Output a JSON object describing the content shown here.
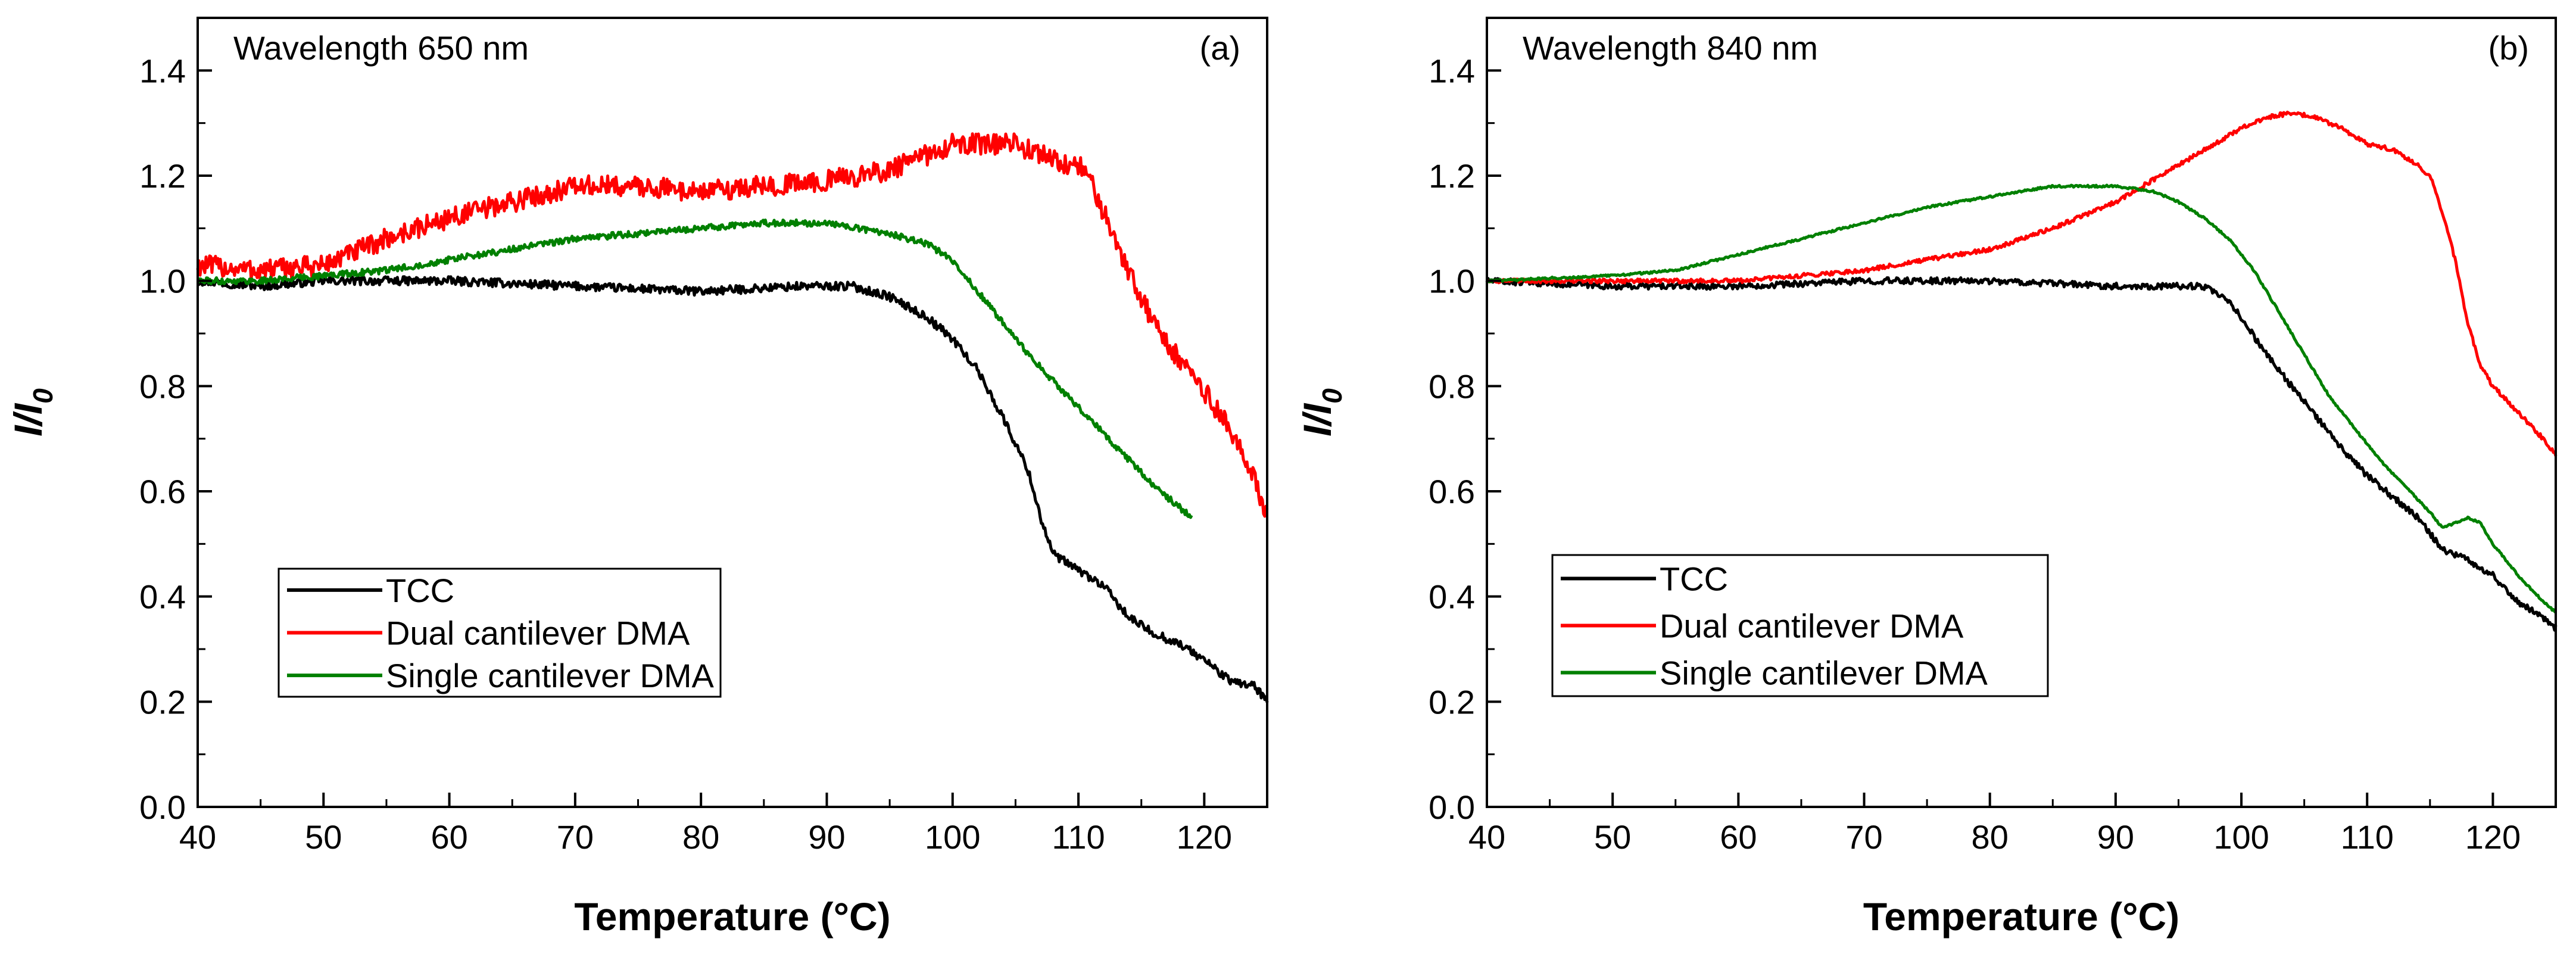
{
  "chart_data": [
    {
      "type": "line",
      "panel_label": "(a)",
      "title": "Wavelength 650 nm",
      "xlabel": "Temperature (°C)",
      "ylabel": "I/I0",
      "ylabel_main": "I/I",
      "ylabel_sub": "0",
      "xlim": [
        40,
        125
      ],
      "ylim": [
        0,
        1.5
      ],
      "xticks": [
        40,
        50,
        60,
        70,
        80,
        90,
        100,
        110,
        120
      ],
      "yticks": [
        "0.0",
        "0.2",
        "0.4",
        "0.6",
        "0.8",
        "1.0",
        "1.2",
        "1.4"
      ],
      "legend": {
        "placement": "bottom-left",
        "entries": [
          "TCC",
          "Dual cantilever DMA",
          "Single cantilever DMA"
        ]
      },
      "series": [
        {
          "name": "TCC",
          "color": "#000000",
          "noise": 0.008,
          "x": [
            40,
            45,
            50,
            60,
            70,
            80,
            88,
            92,
            95,
            98,
            100,
            102,
            104,
            106,
            107,
            108,
            110,
            112,
            114,
            116,
            118,
            120,
            122,
            124,
            125
          ],
          "y": [
            1.0,
            0.99,
            1.0,
            1.0,
            0.99,
            0.98,
            0.99,
            0.99,
            0.97,
            0.93,
            0.89,
            0.83,
            0.74,
            0.64,
            0.55,
            0.48,
            0.45,
            0.42,
            0.36,
            0.33,
            0.31,
            0.28,
            0.24,
            0.23,
            0.2
          ]
        },
        {
          "name": "Dual cantilever DMA",
          "color": "#ff0000",
          "noise": 0.02,
          "x": [
            40,
            45,
            50,
            55,
            60,
            65,
            70,
            75,
            80,
            85,
            90,
            95,
            100,
            103,
            105,
            107,
            109,
            110,
            111,
            112,
            114,
            116,
            118,
            120,
            122,
            124,
            125
          ],
          "y": [
            1.03,
            1.02,
            1.03,
            1.08,
            1.12,
            1.15,
            1.18,
            1.18,
            1.17,
            1.18,
            1.19,
            1.21,
            1.26,
            1.26,
            1.26,
            1.24,
            1.22,
            1.22,
            1.19,
            1.13,
            1.02,
            0.92,
            0.85,
            0.79,
            0.72,
            0.62,
            0.56
          ]
        },
        {
          "name": "Single cantilever DMA",
          "color": "#008000",
          "noise": 0.006,
          "x": [
            40,
            45,
            50,
            55,
            60,
            65,
            70,
            75,
            80,
            85,
            90,
            95,
            98,
            100,
            102,
            104,
            106,
            108,
            110,
            112,
            114,
            116,
            118,
            119
          ],
          "y": [
            1.0,
            1.0,
            1.01,
            1.02,
            1.04,
            1.06,
            1.08,
            1.09,
            1.1,
            1.11,
            1.11,
            1.09,
            1.07,
            1.04,
            0.98,
            0.92,
            0.86,
            0.81,
            0.76,
            0.71,
            0.66,
            0.61,
            0.57,
            0.55
          ]
        }
      ]
    },
    {
      "type": "line",
      "panel_label": "(b)",
      "title": "Wavelength 840 nm",
      "xlabel": "Temperature (°C)",
      "ylabel": "I/I0",
      "ylabel_main": "I/I",
      "ylabel_sub": "0",
      "xlim": [
        40,
        125
      ],
      "ylim": [
        0,
        1.5
      ],
      "xticks": [
        40,
        50,
        60,
        70,
        80,
        90,
        100,
        110,
        120
      ],
      "yticks": [
        "0.0",
        "0.2",
        "0.4",
        "0.6",
        "0.8",
        "1.0",
        "1.2",
        "1.4"
      ],
      "legend": {
        "placement": "bottom-left",
        "entries": [
          "TCC",
          "Dual cantilever DMA",
          "Single cantilever DMA"
        ]
      },
      "series": [
        {
          "name": "TCC",
          "color": "#000000",
          "noise": 0.006,
          "x": [
            40,
            50,
            60,
            70,
            80,
            90,
            95,
            97,
            99,
            100,
            102,
            104,
            106,
            108,
            110,
            112,
            114,
            116,
            118,
            120,
            122,
            124,
            125
          ],
          "y": [
            1.0,
            0.99,
            0.99,
            1.0,
            1.0,
            0.99,
            0.99,
            0.99,
            0.96,
            0.93,
            0.86,
            0.8,
            0.74,
            0.68,
            0.63,
            0.59,
            0.55,
            0.49,
            0.47,
            0.44,
            0.39,
            0.36,
            0.34
          ]
        },
        {
          "name": "Dual cantilever DMA",
          "color": "#ff0000",
          "noise": 0.004,
          "x": [
            40,
            50,
            60,
            65,
            70,
            75,
            80,
            85,
            90,
            95,
            100,
            102,
            104,
            106,
            108,
            110,
            112,
            114,
            115,
            116,
            117,
            118,
            119,
            120,
            122,
            124,
            125
          ],
          "y": [
            1.0,
            1.0,
            1.0,
            1.01,
            1.02,
            1.04,
            1.06,
            1.1,
            1.15,
            1.22,
            1.29,
            1.31,
            1.32,
            1.31,
            1.29,
            1.26,
            1.25,
            1.22,
            1.2,
            1.13,
            1.04,
            0.92,
            0.84,
            0.8,
            0.75,
            0.7,
            0.67
          ]
        },
        {
          "name": "Single cantilever DMA",
          "color": "#008000",
          "noise": 0.002,
          "x": [
            40,
            50,
            55,
            60,
            65,
            70,
            75,
            80,
            85,
            90,
            93,
            95,
            97,
            99,
            101,
            103,
            105,
            107,
            109,
            111,
            113,
            115,
            116,
            117,
            118,
            119,
            120,
            122,
            124,
            125
          ],
          "y": [
            1.0,
            1.01,
            1.02,
            1.05,
            1.08,
            1.11,
            1.14,
            1.16,
            1.18,
            1.18,
            1.17,
            1.15,
            1.12,
            1.08,
            1.02,
            0.94,
            0.86,
            0.78,
            0.72,
            0.66,
            0.61,
            0.56,
            0.53,
            0.54,
            0.55,
            0.54,
            0.5,
            0.44,
            0.39,
            0.37
          ]
        }
      ]
    }
  ]
}
